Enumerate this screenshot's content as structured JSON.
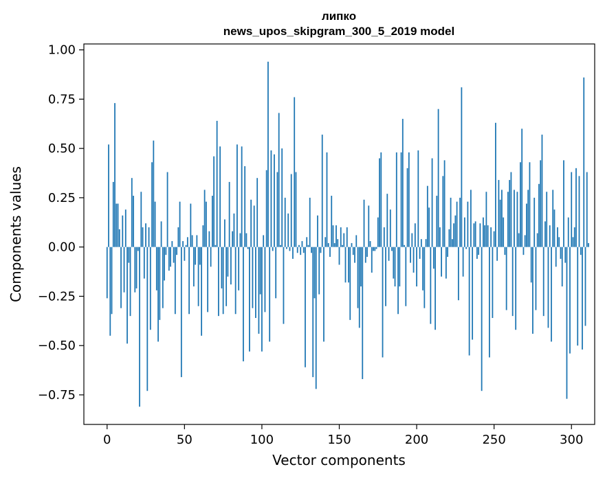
{
  "chart_data": {
    "type": "bar",
    "title_lines": [
      "липко",
      "news_upos_skipgram_300_5_2019 model"
    ],
    "xlabel": "Vector components",
    "ylabel": "Components values",
    "xlim": [
      -15,
      315
    ],
    "ylim": [
      -0.9,
      1.03
    ],
    "x_ticks": [
      0,
      50,
      100,
      150,
      200,
      250,
      300
    ],
    "x_tick_labels": [
      "0",
      "50",
      "100",
      "150",
      "200",
      "250",
      "300"
    ],
    "y_ticks": [
      1.0,
      0.75,
      0.5,
      0.25,
      0.0,
      -0.25,
      -0.5,
      -0.75
    ],
    "y_tick_labels": [
      "1.00",
      "0.75",
      "0.50",
      "0.25",
      "0.00",
      "−0.25",
      "−0.50",
      "−0.75"
    ],
    "bar_color": "#1f77b4",
    "grid": false,
    "series": [
      {
        "name": "липко",
        "values": [
          -0.26,
          0.52,
          -0.45,
          -0.34,
          0.33,
          0.73,
          0.22,
          0.22,
          0.09,
          -0.31,
          0.16,
          -0.23,
          0.19,
          -0.49,
          -0.08,
          -0.35,
          0.35,
          0.26,
          -0.23,
          -0.21,
          -0.02,
          -0.81,
          0.28,
          0.1,
          -0.16,
          0.12,
          -0.73,
          0.1,
          -0.42,
          0.43,
          0.54,
          0.23,
          -0.22,
          -0.48,
          -0.37,
          0.13,
          -0.31,
          -0.17,
          -0.04,
          0.38,
          -0.12,
          -0.1,
          0.03,
          -0.08,
          -0.34,
          -0.04,
          0.1,
          0.23,
          -0.66,
          0.03,
          -0.07,
          0.01,
          0.05,
          -0.34,
          0.22,
          0.06,
          -0.2,
          -0.09,
          0.06,
          -0.3,
          -0.09,
          -0.45,
          0.11,
          0.29,
          0.23,
          -0.33,
          0.08,
          -0.1,
          0.26,
          0.46,
          0.01,
          0.64,
          -0.35,
          0.51,
          -0.21,
          -0.34,
          0.14,
          -0.3,
          -0.15,
          0.33,
          -0.19,
          0.08,
          0.17,
          -0.34,
          0.52,
          -0.22,
          0.07,
          0.51,
          -0.58,
          0.41,
          0.07,
          -0.01,
          -0.53,
          0.24,
          -0.31,
          0.21,
          -0.36,
          0.35,
          -0.44,
          -0.24,
          -0.53,
          0.06,
          -0.33,
          0.39,
          0.94,
          -0.48,
          0.49,
          -0.02,
          0.47,
          -0.26,
          0.38,
          0.68,
          0.01,
          0.5,
          -0.39,
          0.25,
          -0.01,
          0.17,
          -0.02,
          0.37,
          -0.06,
          0.76,
          0.38,
          -0.03,
          0.01,
          -0.04,
          0.03,
          -0.03,
          -0.61,
          0.05,
          0.01,
          0.25,
          -0.03,
          -0.66,
          -0.26,
          -0.72,
          0.16,
          -0.24,
          -0.03,
          0.57,
          -0.48,
          0.05,
          0.48,
          0.02,
          -0.05,
          0.26,
          0.11,
          0.02,
          0.11,
          0.04,
          -0.09,
          0.1,
          0.01,
          0.07,
          -0.18,
          0.1,
          -0.18,
          -0.37,
          0.02,
          -0.04,
          -0.08,
          0.06,
          -0.31,
          -0.41,
          -0.2,
          -0.67,
          0.24,
          -0.08,
          -0.05,
          0.21,
          0.03,
          -0.13,
          -0.02,
          -0.02,
          -0.01,
          0.15,
          0.45,
          0.48,
          -0.56,
          0.1,
          -0.3,
          0.27,
          -0.07,
          0.19,
          -0.02,
          -0.16,
          -0.2,
          0.48,
          -0.34,
          -0.2,
          0.48,
          0.65,
          0.01,
          -0.3,
          0.4,
          0.48,
          -0.08,
          0.07,
          -0.13,
          0.12,
          -0.2,
          0.49,
          -0.06,
          0.04,
          -0.22,
          -0.31,
          0.04,
          0.31,
          0.2,
          -0.39,
          0.45,
          -0.11,
          -0.42,
          0.26,
          0.7,
          0.1,
          -0.15,
          0.36,
          0.44,
          -0.16,
          -0.05,
          0.09,
          0.25,
          0.04,
          0.12,
          0.16,
          0.23,
          -0.27,
          0.25,
          0.81,
          -0.15,
          0.15,
          -0.01,
          0.23,
          -0.55,
          0.29,
          -0.47,
          0.12,
          0.13,
          -0.06,
          -0.04,
          0.12,
          -0.73,
          0.15,
          0.11,
          0.28,
          0.11,
          -0.56,
          0.1,
          -0.36,
          0.08,
          0.63,
          -0.07,
          0.34,
          0.24,
          0.29,
          0.15,
          -0.04,
          -0.32,
          0.28,
          0.34,
          0.38,
          -0.35,
          0.29,
          -0.42,
          0.28,
          0.07,
          0.43,
          0.6,
          -0.04,
          0.06,
          0.22,
          0.29,
          0.43,
          -0.18,
          -0.44,
          0.25,
          -0.32,
          0.07,
          0.32,
          0.44,
          0.57,
          -0.35,
          0.13,
          0.28,
          -0.41,
          0.11,
          -0.48,
          0.29,
          0.19,
          -0.1,
          0.1,
          0.05,
          -0.06,
          -0.2,
          0.44,
          -0.08,
          -0.77,
          0.15,
          -0.54,
          0.38,
          0.05,
          0.1,
          0.4,
          -0.5,
          0.36,
          -0.04,
          -0.52,
          0.86,
          -0.4,
          0.38,
          0.02
        ]
      }
    ]
  }
}
